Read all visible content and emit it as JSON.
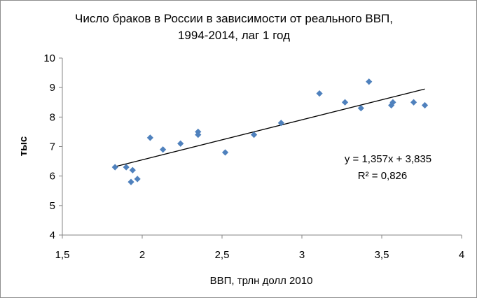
{
  "chart_data": {
    "type": "scatter",
    "title_line1": "Число браков в России в зависимости  от реального ВВП,",
    "title_line2": "1994-2014, лаг 1 год",
    "xlabel": "ВВП, трлн долл 2010",
    "ylabel": "тыс",
    "xlim": [
      1.5,
      4
    ],
    "ylim": [
      4,
      10
    ],
    "x_ticks": [
      "1,5",
      "2",
      "2,5",
      "3",
      "3,5",
      "4"
    ],
    "y_ticks": [
      "4",
      "5",
      "6",
      "7",
      "8",
      "9",
      "10"
    ],
    "x_tick_values": [
      1.5,
      2,
      2.5,
      3,
      3.5,
      4
    ],
    "y_tick_values": [
      4,
      5,
      6,
      7,
      8,
      9,
      10
    ],
    "grid": false,
    "marker_color": "#4f81bd",
    "trendline_color": "#000000",
    "points": [
      {
        "x": 1.83,
        "y": 6.3
      },
      {
        "x": 1.9,
        "y": 6.3
      },
      {
        "x": 1.93,
        "y": 5.8
      },
      {
        "x": 1.94,
        "y": 6.2
      },
      {
        "x": 1.97,
        "y": 5.9
      },
      {
        "x": 2.05,
        "y": 7.3
      },
      {
        "x": 2.13,
        "y": 6.9
      },
      {
        "x": 2.24,
        "y": 7.1
      },
      {
        "x": 2.35,
        "y": 7.5
      },
      {
        "x": 2.35,
        "y": 7.4
      },
      {
        "x": 2.52,
        "y": 6.8
      },
      {
        "x": 2.7,
        "y": 7.4
      },
      {
        "x": 2.87,
        "y": 7.8
      },
      {
        "x": 3.11,
        "y": 8.8
      },
      {
        "x": 3.27,
        "y": 8.5
      },
      {
        "x": 3.37,
        "y": 8.3
      },
      {
        "x": 3.42,
        "y": 9.2
      },
      {
        "x": 3.56,
        "y": 8.4
      },
      {
        "x": 3.57,
        "y": 8.5
      },
      {
        "x": 3.7,
        "y": 8.5
      },
      {
        "x": 3.77,
        "y": 8.4
      }
    ],
    "trendline": {
      "slope": 1.357,
      "intercept": 3.835,
      "x_start": 1.83,
      "x_end": 3.77
    },
    "equation_text": "y = 1,357x + 3,835",
    "r2_text": "R² = 0,826"
  }
}
